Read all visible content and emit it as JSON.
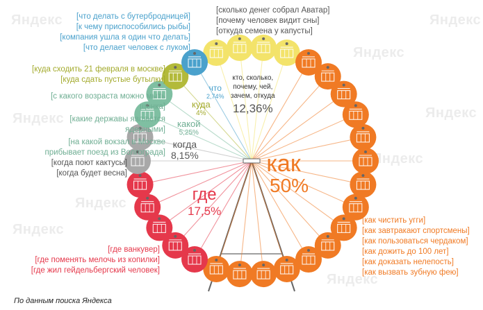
{
  "chart_data": {
    "type": "pie",
    "title": "",
    "categories": [
      "как",
      "где",
      "кто, сколько, почему, чей, зачем, откуда",
      "когда",
      "какой",
      "куда",
      "что"
    ],
    "values": [
      50,
      17.5,
      12.36,
      8.15,
      5.25,
      4,
      2.74
    ],
    "value_labels": [
      "50%",
      "17,5%",
      "12,36%",
      "8,15%",
      "5,25%",
      "4%",
      "2,74%"
    ],
    "colors": {
      "как": "#f07a24",
      "где": "#e5384b",
      "кто": "#f3e36a",
      "когда": "#a8a8a8",
      "какой": "#7fbfa2",
      "куда": "#b3ba3a",
      "что": "#4aa1cc",
      "frame": "#666666"
    }
  },
  "labels": {
    "kak": {
      "word": "как",
      "value": "50%"
    },
    "gde": {
      "word": "где",
      "value": "17,5%"
    },
    "kto": {
      "word": "кто, сколько,\nпочему, чей,\nзачем, откуда",
      "value": "12,36%"
    },
    "kogda": {
      "word": "когда",
      "value": "8,15%"
    },
    "kakoy": {
      "word": "какой",
      "value": "5,25%"
    },
    "kuda": {
      "word": "куда",
      "value": "4%"
    },
    "chto": {
      "word": "что",
      "value": "2,74%"
    }
  },
  "queries": {
    "chto": [
      "[что делать с бутербродницей]",
      "[к чему приспособились рыбы]",
      "[компания ушла я один что делать]",
      "[что делает человек с луком]"
    ],
    "kuda": [
      "[куда сходить 21 февраля в москве]",
      "[куда сдать пустые бутылки]"
    ],
    "kakoy": [
      "[с какого возраста можно мыть",
      "щенка]",
      "[какие державы являются",
      "ядерными]",
      "[на какой вокзал в Москве",
      "прибывает поезд из Волгограда]"
    ],
    "kogda": [
      "[когда поют кактусы]",
      "[когда будет весна]"
    ],
    "gde": [
      "[где ванкувер]",
      "[где поменять мелочь из копилки]",
      "[где жил гейдельбергский человек]"
    ],
    "kto": [
      "[сколько денег собрал Аватар]",
      "[почему человек видит сны]",
      "[откуда семена у капусты]"
    ],
    "kak": [
      "[как чистить угги]",
      "[как завтракают спортсмены]",
      "[как пользоваться чердаком]",
      "[как дожить до 100 лет]",
      "[как доказать нелепость]",
      "[как вызвать зубную фею]"
    ]
  },
  "watermark": "Яндекс",
  "source": "По данным поиска Яндекса"
}
